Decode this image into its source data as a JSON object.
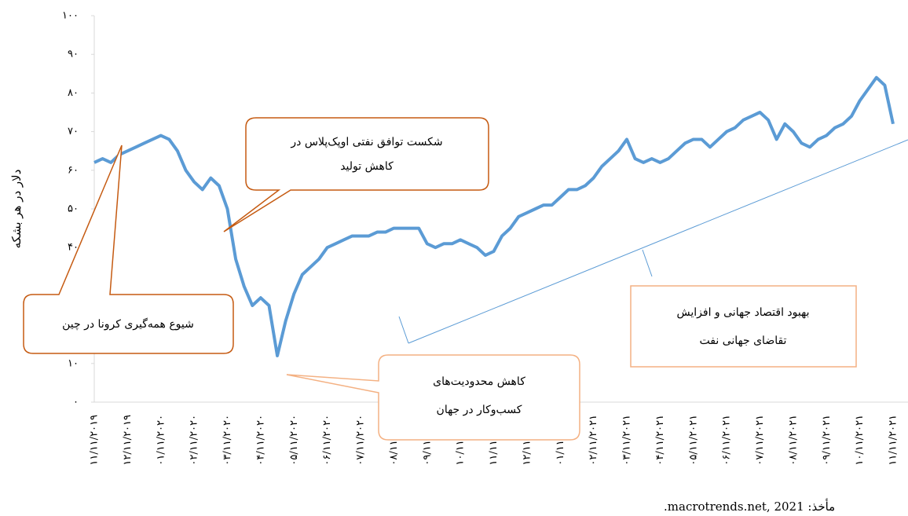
{
  "chart_data": {
    "type": "line",
    "y_label": "دلار در هر بشکه",
    "source": "مأخذ: macrotrends.net, 2021.",
    "categories": [
      "۱۱/۱۱/۲۰۱۹",
      null,
      null,
      null,
      "۱۲/۱۱/۲۰۱۹",
      null,
      null,
      null,
      "۰۱/۱۱/۲۰۲۰",
      null,
      null,
      null,
      "۰۲/۱۱/۲۰۲۰",
      null,
      null,
      null,
      "۰۳/۱۱/۲۰۲۰",
      null,
      null,
      null,
      "۰۴/۱۱/۲۰۲۰",
      null,
      null,
      null,
      "۰۵/۱۱/۲۰۲۰",
      null,
      null,
      null,
      "۰۶/۱۱/۲۰۲۰",
      null,
      null,
      null,
      "۰۷/۱۱/۲۰۲۰",
      null,
      null,
      null,
      "۰۸/۱۱/۲۰۲۰",
      null,
      null,
      null,
      "۰۹/۱۱/۲۰۲۰",
      null,
      null,
      null,
      "۱۰/۱۱/۲۰۲۰",
      null,
      null,
      null,
      "۱۱/۱۱/۲۰۲۰",
      null,
      null,
      null,
      "۱۲/۱۱/۲۰۲۰",
      null,
      null,
      null,
      "۰۱/۱۱/۲۰۲۱",
      null,
      null,
      null,
      "۰۲/۱۱/۲۰۲۱",
      null,
      null,
      null,
      "۰۳/۱۱/۲۰۲۱",
      null,
      null,
      null,
      "۰۴/۱۱/۲۰۲۱",
      null,
      null,
      null,
      "۰۵/۱۱/۲۰۲۱",
      null,
      null,
      null,
      "۰۶/۱۱/۲۰۲۱",
      null,
      null,
      null,
      "۰۷/۱۱/۲۰۲۱",
      null,
      null,
      null,
      "۰۸/۱۱/۲۰۲۱",
      null,
      null,
      null,
      "۰۹/۱۱/۲۰۲۱",
      null,
      null,
      null,
      "۱۰/۱۱/۲۰۲۱",
      null,
      null,
      null,
      "۱۱/۱۱/۲۰۲۱"
    ],
    "series": [
      {
        "color": "#5b9bd5",
        "values": [
          62,
          63,
          62,
          64,
          65,
          66,
          67,
          68,
          69,
          68,
          65,
          60,
          57,
          55,
          58,
          56,
          50,
          37,
          30,
          25,
          27,
          25,
          12,
          21,
          28,
          33,
          35,
          37,
          40,
          41,
          42,
          43,
          43,
          43,
          44,
          44,
          45,
          45,
          45,
          45,
          41,
          40,
          41,
          41,
          42,
          41,
          40,
          38,
          39,
          43,
          45,
          48,
          49,
          50,
          51,
          51,
          53,
          55,
          55,
          56,
          58,
          61,
          63,
          65,
          68,
          63,
          62,
          63,
          62,
          63,
          65,
          67,
          68,
          68,
          66,
          68,
          70,
          71,
          73,
          74,
          75,
          73,
          68,
          72,
          70,
          67,
          66,
          68,
          69,
          71,
          72,
          74,
          78,
          81,
          84,
          82,
          72
        ]
      }
    ],
    "ylim": [
      0,
      100
    ],
    "yticks": [
      {
        "value": 0,
        "label": "۰"
      },
      {
        "value": 10,
        "label": "۱۰"
      },
      {
        "value": 20,
        "label": "۲۰"
      },
      {
        "value": 30,
        "label": "۳۰"
      },
      {
        "value": 40,
        "label": "۴۰"
      },
      {
        "value": 50,
        "label": "۵۰"
      },
      {
        "value": 60,
        "label": "۶۰"
      },
      {
        "value": 70,
        "label": "۷۰"
      },
      {
        "value": 80,
        "label": "۸۰"
      },
      {
        "value": 90,
        "label": "۹۰"
      },
      {
        "value": 100,
        "label": "۱۰۰"
      }
    ],
    "annotations": [
      {
        "lines": [
          "شکست توافق نفتی اوپک‌پلاس در",
          "کاهش تولید"
        ]
      },
      {
        "lines": [
          "شیوع همه‌گیری کرونا در چین"
        ]
      },
      {
        "lines": [
          "کاهش محدودیت‌های",
          "کسب‌وکار در جهان"
        ]
      },
      {
        "lines": [
          "بهبود اقتصاد جهانی و افزایش",
          "تقاضای جهانی نفت"
        ]
      }
    ]
  }
}
